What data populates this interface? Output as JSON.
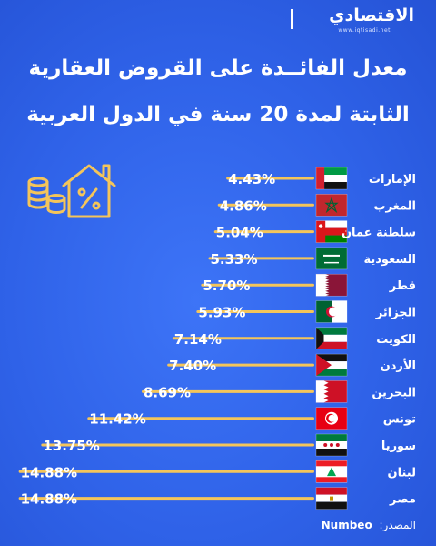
{
  "brand": {
    "name": "الاقتصادي",
    "url": "www.iqtisadi.net"
  },
  "title_line1": "معدل الفائــدة على القروض العقارية",
  "title_line2": "الثابتة لمدة 20 سنة في الدول العربية",
  "source": {
    "label": "المصدر:",
    "value": "Numbeo"
  },
  "colors": {
    "background": "#2f62e8",
    "bar": "#f4c55a",
    "value_text": "#ffffff",
    "label_text": "#ffffff",
    "icon_outline": "#f4c55a"
  },
  "chart_data": {
    "type": "bar",
    "orientation": "horizontal",
    "unit": "%",
    "categories": [
      "الإمارات",
      "المغرب",
      "سلطنة عمان",
      "السعودية",
      "قطر",
      "الجزائر",
      "الكويت",
      "الأردن",
      "البحرين",
      "تونس",
      "سوريا",
      "لبنان",
      "مصر"
    ],
    "values": [
      4.43,
      4.86,
      5.04,
      5.33,
      5.7,
      5.93,
      7.14,
      7.4,
      8.69,
      11.42,
      13.75,
      14.88,
      14.88
    ],
    "labels": [
      "4.43%",
      "4.86%",
      "5.04%",
      "5.33%",
      "5.70%",
      "5.93%",
      "7.14%",
      "7.40%",
      "8.69%",
      "11.42%",
      "13.75%",
      "14.88%",
      "14.88%"
    ],
    "flags": [
      "uae-flag",
      "morocco-flag",
      "oman-flag",
      "saudi-flag",
      "qatar-flag",
      "algeria-flag",
      "kuwait-flag",
      "jordan-flag",
      "bahrain-flag",
      "tunisia-flag",
      "syria-flag",
      "lebanon-flag",
      "egypt-flag"
    ],
    "xlim": [
      0,
      15
    ]
  }
}
